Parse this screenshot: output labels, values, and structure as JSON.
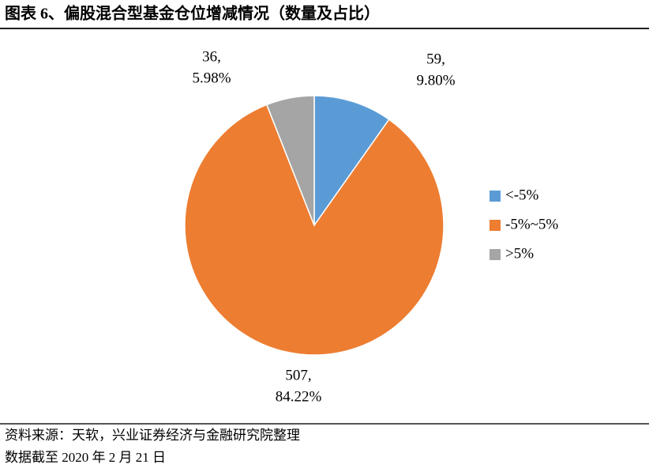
{
  "header": {
    "title": "图表 6、偏股混合型基金仓位增减情况（数量及占比）"
  },
  "chart_data": {
    "type": "pie",
    "categories": [
      "<-5%",
      "-5%~5%",
      ">5%"
    ],
    "values": [
      59,
      507,
      36
    ],
    "value_labels": [
      "59,",
      "507,",
      "36,"
    ],
    "percents": [
      9.8,
      84.22,
      5.98
    ],
    "percent_labels": [
      "9.80%",
      "84.22%",
      "5.98%"
    ],
    "colors": [
      "#5b9bd5",
      "#ed7d31",
      "#a5a5a5"
    ],
    "legend": "right"
  },
  "footer": {
    "source": "资料来源：天软，兴业证券经济与金融研究院整理",
    "note": "数据截至 2020 年 2 月 21 日"
  }
}
